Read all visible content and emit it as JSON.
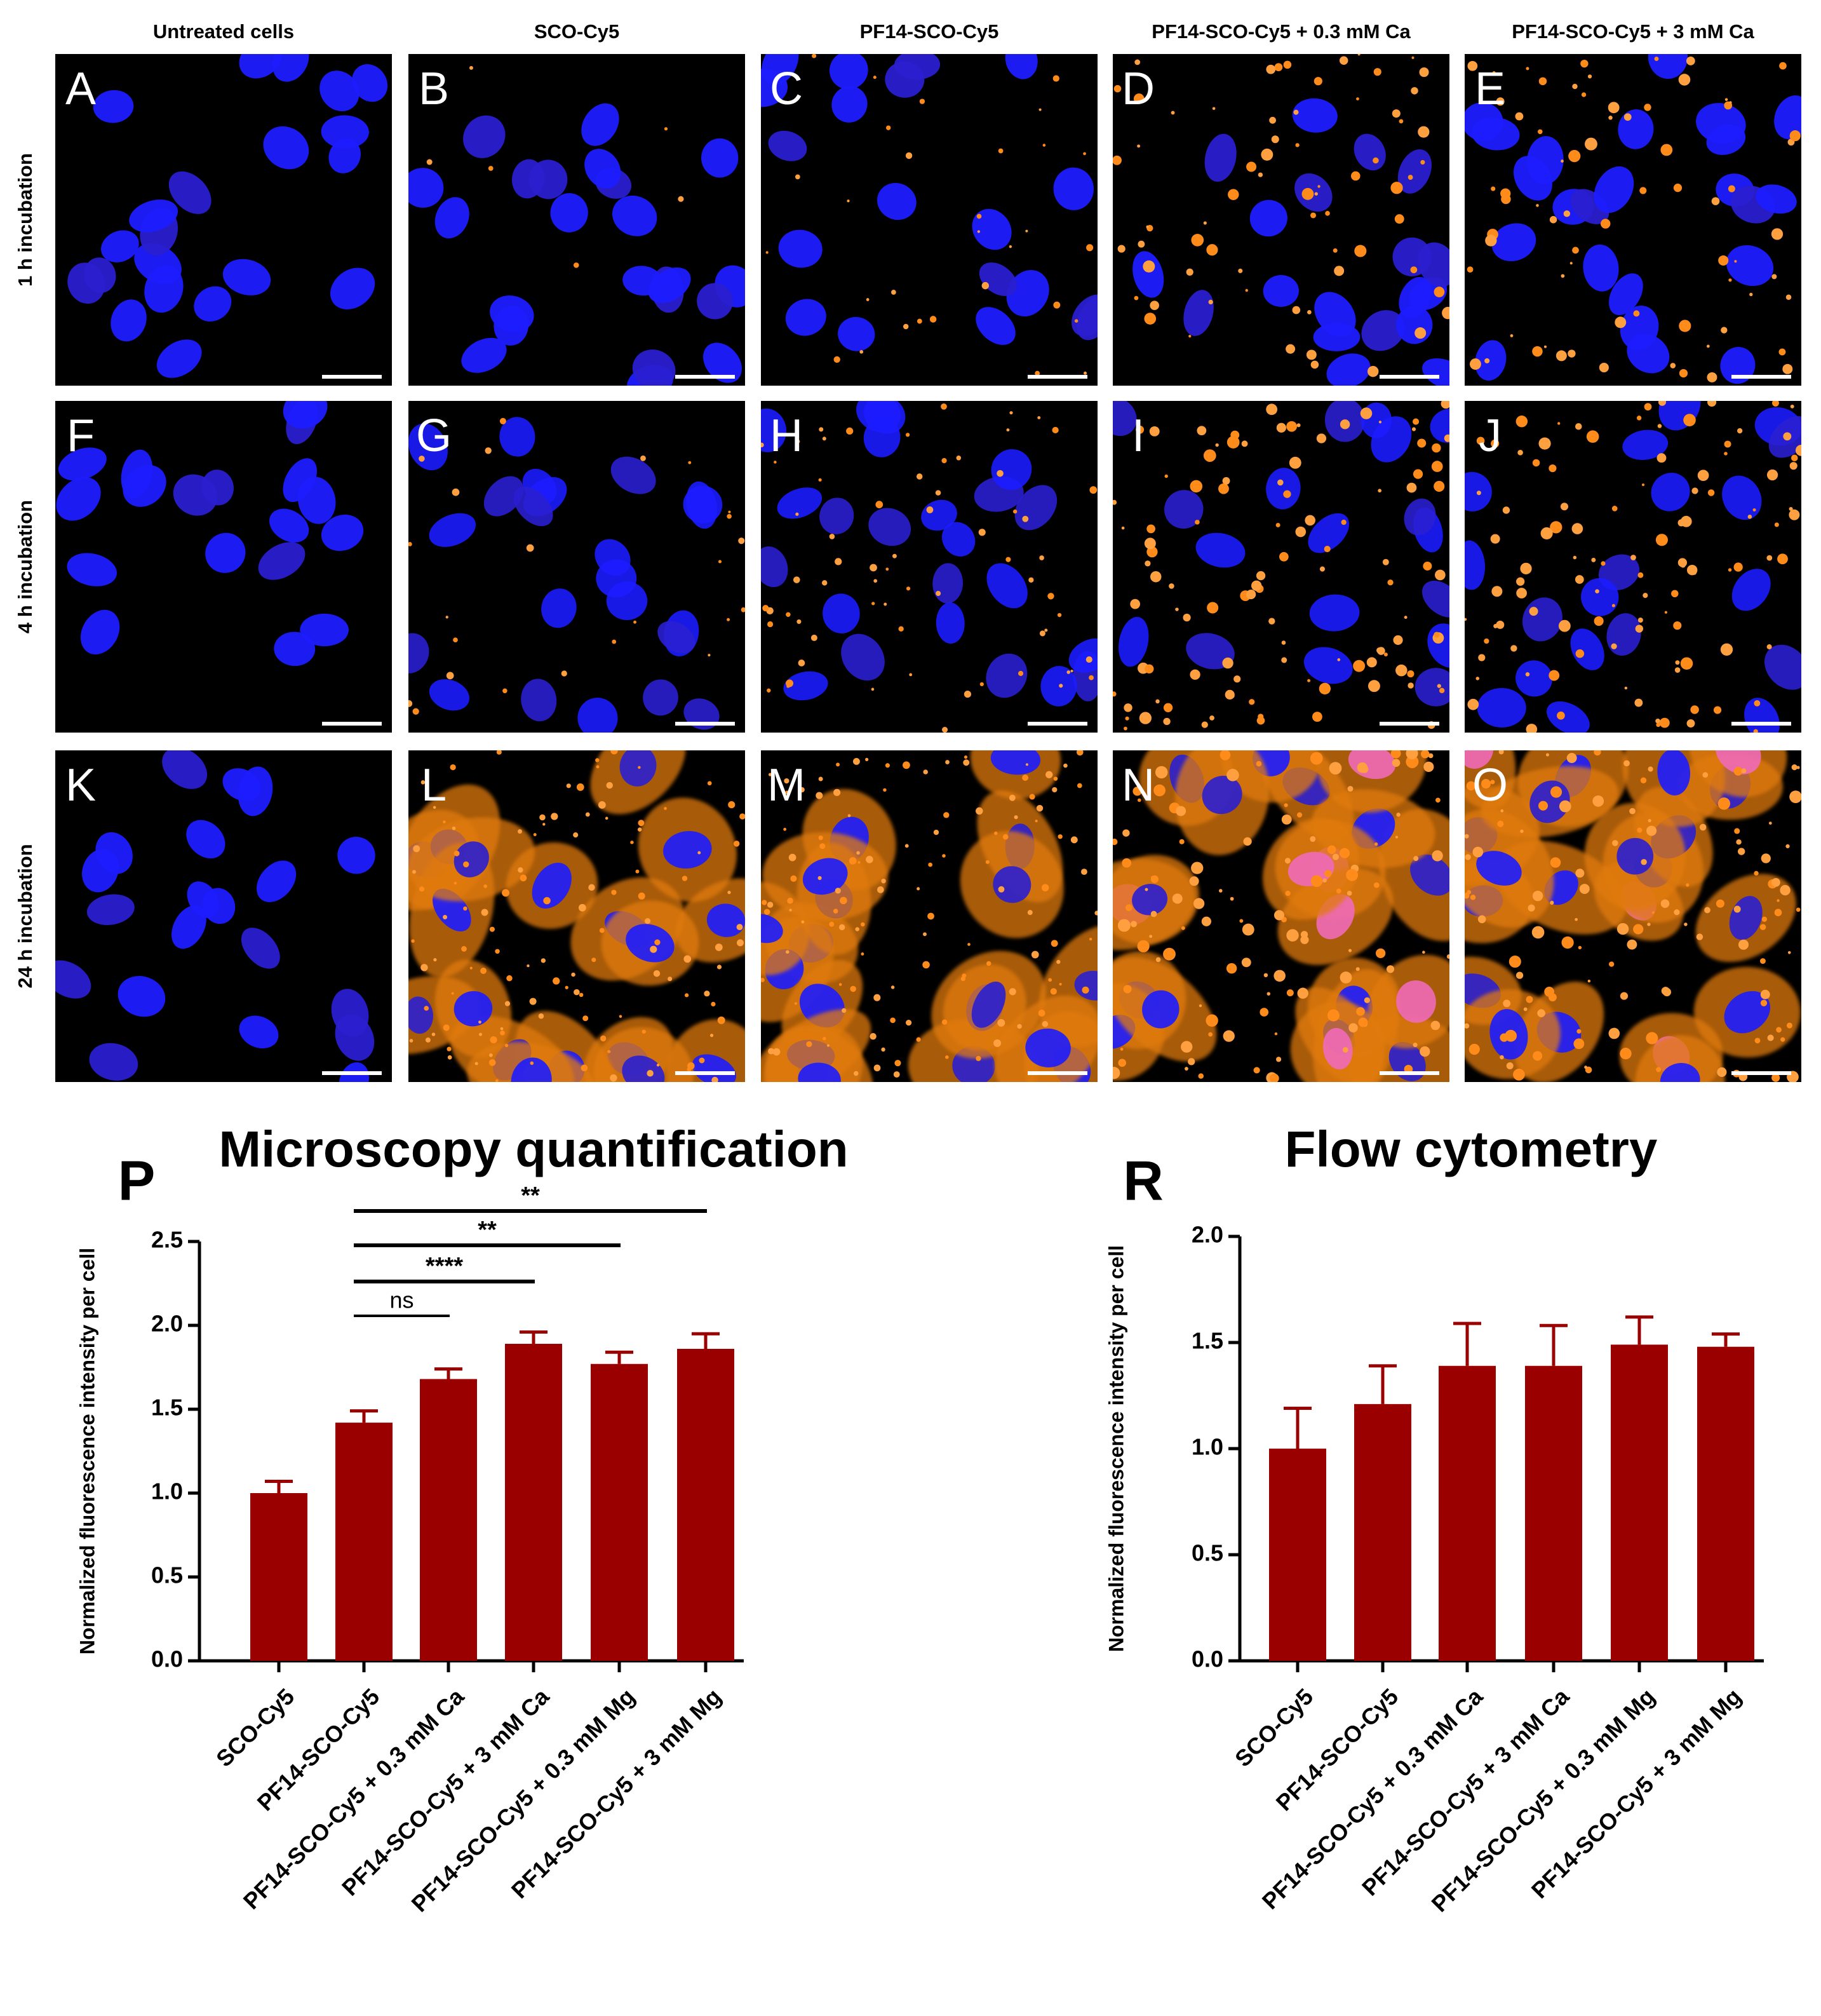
{
  "microscopy": {
    "column_headers": [
      "Untreated cells",
      "SCO-Cy5",
      "PF14-SCO-Cy5",
      "PF14-SCO-Cy5 + 0.3 mM Ca",
      "PF14-SCO-Cy5 + 3 mM Ca"
    ],
    "row_labels": [
      "1 h incubation",
      "4 h incubation",
      "24 h incubation"
    ],
    "panel_letters": [
      [
        "A",
        "B",
        "C",
        "D",
        "E"
      ],
      [
        "F",
        "G",
        "H",
        "I",
        "J"
      ],
      [
        "K",
        "L",
        "M",
        "N",
        "O"
      ]
    ]
  },
  "chart_data": [
    {
      "type": "bar",
      "panel_letter": "P",
      "title": "Microscopy quantification",
      "y_label": "Normalized fluorescence intensity per cell",
      "categories": [
        "SCO-Cy5",
        "PF14-SCO-Cy5",
        "PF14-SCO-Cy5 + 0.3 mM Ca",
        "PF14-SCO-Cy5 + 3 mM Ca",
        "PF14-SCO-Cy5 + 0.3 mM Mg",
        "PF14-SCO-Cy5 + 3 mM Mg"
      ],
      "values": [
        1.0,
        1.42,
        1.68,
        1.89,
        1.77,
        1.86
      ],
      "errors": [
        0.07,
        0.07,
        0.06,
        0.07,
        0.07,
        0.09
      ],
      "color": "#9b0000",
      "ylim": [
        0,
        2.5
      ],
      "yticks": [
        {
          "value": 0,
          "label": "0.0"
        },
        {
          "value": 0.5,
          "label": "0.5"
        },
        {
          "value": 1,
          "label": "1.0"
        },
        {
          "value": 1.5,
          "label": "1.5"
        },
        {
          "value": 2,
          "label": "2.0"
        },
        {
          "value": 2.5,
          "label": "2.5"
        }
      ],
      "significance": [
        "ns",
        "****",
        "**",
        "**"
      ]
    },
    {
      "type": "bar",
      "panel_letter": "R",
      "title": "Flow cytometry",
      "y_label": "Normalized fluorescence intensity per cell",
      "categories": [
        "SCO-Cy5",
        "PF14-SCO-Cy5",
        "PF14-SCO-Cy5 + 0.3 mM Ca",
        "PF14-SCO-Cy5 + 3 mM Ca",
        "PF14-SCO-Cy5 + 0.3 mM Mg",
        "PF14-SCO-Cy5 + 3 mM Mg"
      ],
      "values": [
        1.0,
        1.21,
        1.39,
        1.39,
        1.49,
        1.48
      ],
      "errors": [
        0.19,
        0.18,
        0.2,
        0.19,
        0.13,
        0.06
      ],
      "color": "#9b0000",
      "ylim": [
        0,
        2
      ],
      "yticks": [
        {
          "value": 0,
          "label": "0.0"
        },
        {
          "value": 0.5,
          "label": "0.5"
        },
        {
          "value": 1,
          "label": "1.0"
        },
        {
          "value": 1.5,
          "label": "1.5"
        },
        {
          "value": 2,
          "label": "2.0"
        }
      ]
    }
  ]
}
